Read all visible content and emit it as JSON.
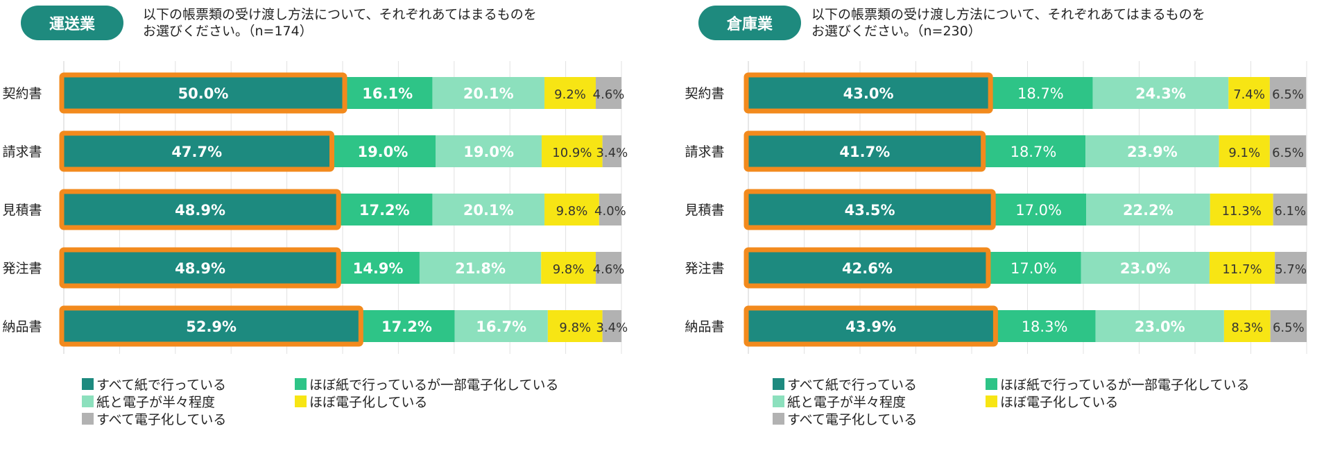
{
  "colors": {
    "all_paper": "#1d8a7f",
    "mostly_paper": "#2ec487",
    "half": "#8ce0bd",
    "mostly_digital": "#f7e514",
    "all_digital": "#b2b2b2",
    "highlight": "#f28a1d",
    "badge": "#1e8a7e"
  },
  "legend": [
    "すべて紙で行っている",
    "ほぼ紙で行っているが一部電子化している",
    "紙と電子が半々程度",
    "ほぼ電子化している",
    "すべて電子化している"
  ],
  "chart_data": [
    {
      "type": "bar",
      "orientation": "horizontal-stacked-100",
      "badge": "運送業",
      "title_line1": "以下の帳票類の受け渡し方法について、それぞれあてはまるものを",
      "title_line2": "お選びください。（n=174）",
      "categories": [
        "契約書",
        "請求書",
        "見積書",
        "発注書",
        "納品書"
      ],
      "series": [
        {
          "name": "すべて紙で行っている",
          "values": [
            50.0,
            47.7,
            48.9,
            48.9,
            52.9
          ],
          "labels": [
            "50.0%",
            "47.7%",
            "48.9%",
            "48.9%",
            "52.9%"
          ]
        },
        {
          "name": "ほぼ紙で行っているが一部電子化している",
          "values": [
            16.1,
            19.0,
            17.2,
            14.9,
            17.2
          ],
          "labels": [
            "16.1%",
            "19.0%",
            "17.2%",
            "14.9%",
            "17.2%"
          ]
        },
        {
          "name": "紙と電子が半々程度",
          "values": [
            20.1,
            19.0,
            20.1,
            21.8,
            16.7
          ],
          "labels": [
            "20.1%",
            "19.0%",
            "20.1%",
            "21.8%",
            "16.7%"
          ]
        },
        {
          "name": "ほぼ電子化している",
          "values": [
            9.2,
            10.9,
            9.8,
            9.8,
            9.8
          ],
          "labels": [
            "9.2%",
            "10.9%",
            "9.8%",
            "9.8%",
            "9.8%"
          ]
        },
        {
          "name": "すべて電子化している",
          "values": [
            4.6,
            3.4,
            4.0,
            4.6,
            3.4
          ],
          "labels": [
            "4.6%",
            "3.4%",
            "4.0%",
            "4.6%",
            "3.4%"
          ]
        }
      ],
      "xlim": [
        0,
        100
      ],
      "grid": true
    },
    {
      "type": "bar",
      "orientation": "horizontal-stacked-100",
      "badge": "倉庫業",
      "title_line1": "以下の帳票類の受け渡し方法について、それぞれあてはまるものを",
      "title_line2": "お選びください。（n=230）",
      "categories": [
        "契約書",
        "請求書",
        "見積書",
        "発注書",
        "納品書"
      ],
      "series": [
        {
          "name": "すべて紙で行っている",
          "values": [
            43.0,
            41.7,
            43.5,
            42.6,
            43.9
          ],
          "labels": [
            "43.0%",
            "41.7%",
            "43.5%",
            "42.6%",
            "43.9%"
          ]
        },
        {
          "name": "ほぼ紙で行っているが一部電子化している",
          "values": [
            18.7,
            18.7,
            17.0,
            17.0,
            18.3
          ],
          "labels": [
            "18.7%",
            "18.7%",
            "17.0%",
            "17.0%",
            "18.3%"
          ]
        },
        {
          "name": "紙と電子が半々程度",
          "values": [
            24.3,
            23.9,
            22.2,
            23.0,
            23.0
          ],
          "labels": [
            "24.3%",
            "23.9%",
            "22.2%",
            "23.0%",
            "23.0%"
          ]
        },
        {
          "name": "ほぼ電子化している",
          "values": [
            7.4,
            9.1,
            11.3,
            11.7,
            8.3
          ],
          "labels": [
            "7.4%",
            "9.1%",
            "11.3%",
            "11.7%",
            "8.3%"
          ]
        },
        {
          "name": "すべて電子化している",
          "values": [
            6.5,
            6.5,
            6.1,
            5.7,
            6.5
          ],
          "labels": [
            "6.5%",
            "6.5%",
            "6.1%",
            "5.7%",
            "6.5%"
          ]
        }
      ],
      "xlim": [
        0,
        100
      ],
      "grid": true
    }
  ]
}
